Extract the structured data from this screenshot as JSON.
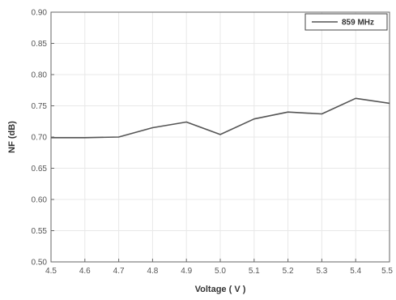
{
  "chart_data": {
    "type": "line",
    "xlabel": "Voltage ( V )",
    "ylabel": "NF (dB)",
    "xlim": [
      4.5,
      5.5
    ],
    "ylim": [
      0.5,
      0.9
    ],
    "x_ticks": [
      "4.5",
      "4.6",
      "4.7",
      "4.8",
      "4.9",
      "5.0",
      "5.1",
      "5.2",
      "5.3",
      "5.4",
      "5.5"
    ],
    "y_ticks": [
      "0.50",
      "0.55",
      "0.60",
      "0.65",
      "0.70",
      "0.75",
      "0.80",
      "0.85",
      "0.90"
    ],
    "grid": true,
    "legend_position": "top-right",
    "series": [
      {
        "name": "859 MHz",
        "color": "#555555",
        "x": [
          4.5,
          4.6,
          4.7,
          4.8,
          4.9,
          5.0,
          5.1,
          5.2,
          5.3,
          5.4,
          5.5
        ],
        "y": [
          0.699,
          0.699,
          0.7,
          0.715,
          0.724,
          0.704,
          0.729,
          0.74,
          0.737,
          0.762,
          0.754
        ]
      }
    ]
  }
}
